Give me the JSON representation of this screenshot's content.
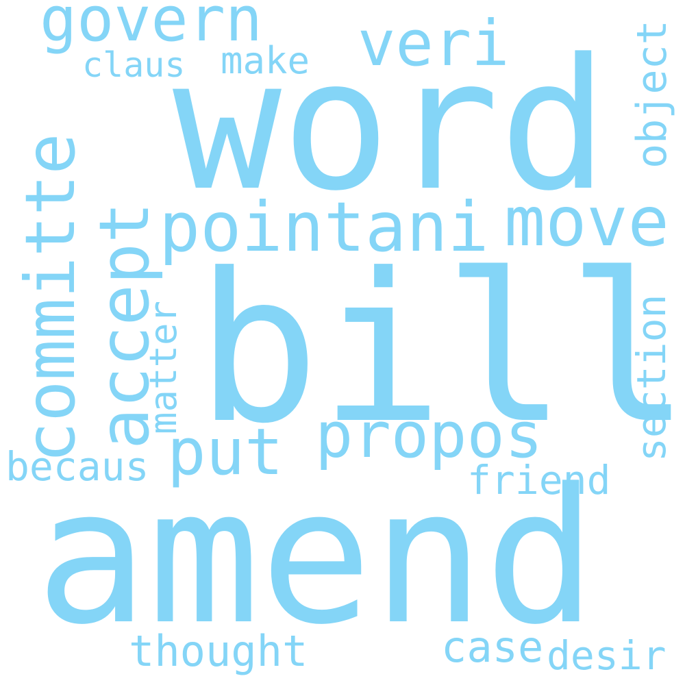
{
  "wordcloud": {
    "color": "#84d5f7",
    "background": "#ffffff",
    "words": {
      "amend": "amend",
      "bill": "bill",
      "word": "word",
      "pointani": "pointani",
      "move": "move",
      "propos": "propos",
      "committe": "committe",
      "accept": "accept",
      "govern": "govern",
      "veri": "veri",
      "put": "put",
      "thought": "thought",
      "case": "case",
      "desir": "desir",
      "friend": "friend",
      "becaus": "becaus",
      "section": "section",
      "matter": "matter",
      "object": "object",
      "claus": "claus",
      "make": "make"
    }
  }
}
